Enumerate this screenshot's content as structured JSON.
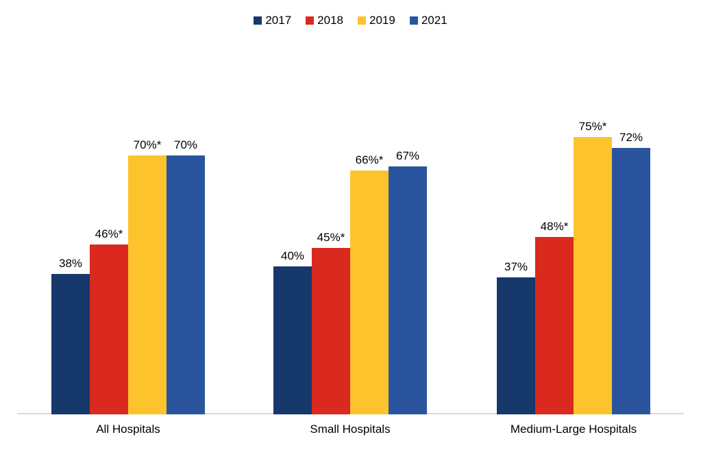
{
  "chart_data": {
    "type": "bar",
    "title": "",
    "xlabel": "",
    "ylabel": "",
    "categories": [
      "All Hospitals",
      "Small Hospitals",
      "Medium-Large Hospitals"
    ],
    "series": [
      {
        "name": "2017",
        "color": "#16386B",
        "values": [
          38,
          40,
          37
        ],
        "data_labels": [
          "38%",
          "40%",
          "37%"
        ]
      },
      {
        "name": "2018",
        "color": "#DA291E",
        "values": [
          46,
          45,
          48
        ],
        "data_labels": [
          "46%*",
          "45%*",
          "48%*"
        ]
      },
      {
        "name": "2019",
        "color": "#FDC32D",
        "values": [
          70,
          66,
          75
        ],
        "data_labels": [
          "70%*",
          "66%*",
          "75%*"
        ]
      },
      {
        "name": "2021",
        "color": "#2A559E",
        "values": [
          70,
          67,
          72
        ],
        "data_labels": [
          "70%",
          "67%",
          "72%"
        ]
      }
    ],
    "ylim": [
      0,
      100
    ],
    "value_suffix": "%",
    "grid": false,
    "legend_position": "top",
    "axis_line_color": "#D9D9D9",
    "background_color": "#FFFFFF"
  }
}
